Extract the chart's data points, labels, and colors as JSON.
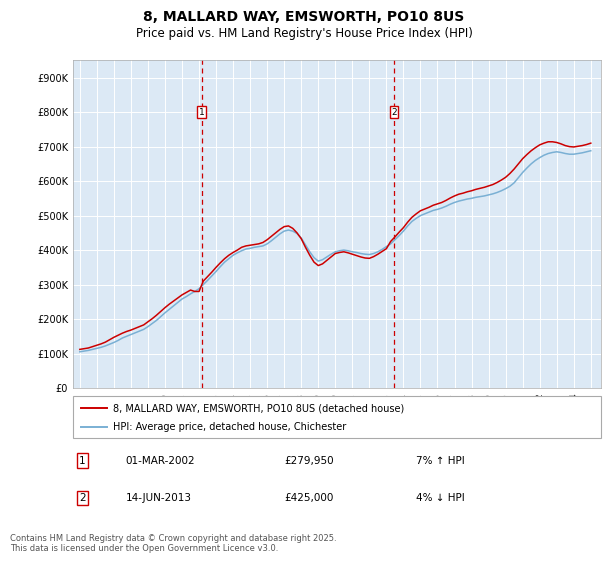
{
  "title": "8, MALLARD WAY, EMSWORTH, PO10 8US",
  "subtitle": "Price paid vs. HM Land Registry's House Price Index (HPI)",
  "title_fontsize": 10,
  "subtitle_fontsize": 8.5,
  "ylabel_labels": [
    "£0",
    "£100K",
    "£200K",
    "£300K",
    "£400K",
    "£500K",
    "£600K",
    "£700K",
    "£800K",
    "£900K"
  ],
  "ylim": [
    0,
    950000
  ],
  "yticks": [
    0,
    100000,
    200000,
    300000,
    400000,
    500000,
    600000,
    700000,
    800000,
    900000
  ],
  "xstart": 1994.6,
  "xend": 2025.6,
  "background_color": "#dce9f5",
  "plot_bg": "#dce9f5",
  "red_line_color": "#cc0000",
  "blue_line_color": "#7ab0d4",
  "dashed_line_color": "#cc0000",
  "sale1_x": 2002.16,
  "sale2_x": 2013.45,
  "sale1_price": 279950,
  "sale2_price": 425000,
  "legend1": "8, MALLARD WAY, EMSWORTH, PO10 8US (detached house)",
  "legend2": "HPI: Average price, detached house, Chichester",
  "annotation1_label": "1",
  "annotation2_label": "2",
  "annotation1_date": "01-MAR-2002",
  "annotation1_price": "£279,950",
  "annotation1_hpi": "7% ↑ HPI",
  "annotation2_date": "14-JUN-2013",
  "annotation2_price": "£425,000",
  "annotation2_hpi": "4% ↓ HPI",
  "footer": "Contains HM Land Registry data © Crown copyright and database right 2025.\nThis data is licensed under the Open Government Licence v3.0.",
  "hpi_years": [
    1995,
    1995.25,
    1995.5,
    1995.75,
    1996,
    1996.25,
    1996.5,
    1996.75,
    1997,
    1997.25,
    1997.5,
    1997.75,
    1998,
    1998.25,
    1998.5,
    1998.75,
    1999,
    1999.25,
    1999.5,
    1999.75,
    2000,
    2000.25,
    2000.5,
    2000.75,
    2001,
    2001.25,
    2001.5,
    2001.75,
    2002,
    2002.25,
    2002.5,
    2002.75,
    2003,
    2003.25,
    2003.5,
    2003.75,
    2004,
    2004.25,
    2004.5,
    2004.75,
    2005,
    2005.25,
    2005.5,
    2005.75,
    2006,
    2006.25,
    2006.5,
    2006.75,
    2007,
    2007.25,
    2007.5,
    2007.75,
    2008,
    2008.25,
    2008.5,
    2008.75,
    2009,
    2009.25,
    2009.5,
    2009.75,
    2010,
    2010.25,
    2010.5,
    2010.75,
    2011,
    2011.25,
    2011.5,
    2011.75,
    2012,
    2012.25,
    2012.5,
    2012.75,
    2013,
    2013.25,
    2013.5,
    2013.75,
    2014,
    2014.25,
    2014.5,
    2014.75,
    2015,
    2015.25,
    2015.5,
    2015.75,
    2016,
    2016.25,
    2016.5,
    2016.75,
    2017,
    2017.25,
    2017.5,
    2017.75,
    2018,
    2018.25,
    2018.5,
    2018.75,
    2019,
    2019.25,
    2019.5,
    2019.75,
    2020,
    2020.25,
    2020.5,
    2020.75,
    2021,
    2021.25,
    2021.5,
    2021.75,
    2022,
    2022.25,
    2022.5,
    2022.75,
    2023,
    2023.25,
    2023.5,
    2023.75,
    2024,
    2024.25,
    2024.5,
    2024.75,
    2025
  ],
  "hpi_values": [
    105000,
    107000,
    109000,
    112000,
    115000,
    118000,
    122000,
    127000,
    132000,
    138000,
    145000,
    150000,
    155000,
    160000,
    165000,
    170000,
    178000,
    187000,
    196000,
    207000,
    218000,
    228000,
    238000,
    248000,
    258000,
    265000,
    273000,
    280000,
    288000,
    300000,
    312000,
    325000,
    338000,
    352000,
    365000,
    375000,
    385000,
    392000,
    398000,
    403000,
    405000,
    408000,
    410000,
    412000,
    418000,
    427000,
    437000,
    447000,
    455000,
    458000,
    455000,
    448000,
    435000,
    415000,
    395000,
    378000,
    368000,
    372000,
    380000,
    388000,
    395000,
    398000,
    400000,
    398000,
    395000,
    393000,
    390000,
    388000,
    387000,
    390000,
    395000,
    402000,
    410000,
    418000,
    430000,
    442000,
    455000,
    470000,
    483000,
    492000,
    500000,
    505000,
    510000,
    515000,
    518000,
    522000,
    527000,
    533000,
    538000,
    542000,
    545000,
    548000,
    550000,
    553000,
    555000,
    557000,
    560000,
    563000,
    567000,
    572000,
    578000,
    585000,
    595000,
    610000,
    625000,
    638000,
    650000,
    660000,
    668000,
    675000,
    680000,
    683000,
    685000,
    683000,
    680000,
    678000,
    678000,
    680000,
    682000,
    685000,
    688000
  ],
  "price_years": [
    1995,
    1995.25,
    1995.5,
    1995.75,
    1996,
    1996.25,
    1996.5,
    1996.75,
    1997,
    1997.25,
    1997.5,
    1997.75,
    1998,
    1998.25,
    1998.5,
    1998.75,
    1999,
    1999.25,
    1999.5,
    1999.75,
    2000,
    2000.25,
    2000.5,
    2000.75,
    2001,
    2001.25,
    2001.5,
    2001.75,
    2002,
    2002.25,
    2002.5,
    2002.75,
    2003,
    2003.25,
    2003.5,
    2003.75,
    2004,
    2004.25,
    2004.5,
    2004.75,
    2005,
    2005.25,
    2005.5,
    2005.75,
    2006,
    2006.25,
    2006.5,
    2006.75,
    2007,
    2007.25,
    2007.5,
    2007.75,
    2008,
    2008.25,
    2008.5,
    2008.75,
    2009,
    2009.25,
    2009.5,
    2009.75,
    2010,
    2010.25,
    2010.5,
    2010.75,
    2011,
    2011.25,
    2011.5,
    2011.75,
    2012,
    2012.25,
    2012.5,
    2012.75,
    2013,
    2013.25,
    2013.5,
    2013.75,
    2014,
    2014.25,
    2014.5,
    2014.75,
    2015,
    2015.25,
    2015.5,
    2015.75,
    2016,
    2016.25,
    2016.5,
    2016.75,
    2017,
    2017.25,
    2017.5,
    2017.75,
    2018,
    2018.25,
    2018.5,
    2018.75,
    2019,
    2019.25,
    2019.5,
    2019.75,
    2020,
    2020.25,
    2020.5,
    2020.75,
    2021,
    2021.25,
    2021.5,
    2021.75,
    2022,
    2022.25,
    2022.5,
    2022.75,
    2023,
    2023.25,
    2023.5,
    2023.75,
    2024,
    2024.25,
    2024.5,
    2024.75,
    2025
  ],
  "price_values": [
    112000,
    114000,
    116000,
    120000,
    124000,
    128000,
    133000,
    140000,
    147000,
    153000,
    159000,
    164000,
    168000,
    173000,
    178000,
    183000,
    192000,
    201000,
    211000,
    222000,
    233000,
    243000,
    252000,
    261000,
    270000,
    277000,
    284000,
    279950,
    279950,
    310000,
    323000,
    336000,
    350000,
    363000,
    375000,
    385000,
    393000,
    400000,
    408000,
    412000,
    414000,
    416000,
    418000,
    422000,
    430000,
    440000,
    450000,
    460000,
    468000,
    470000,
    463000,
    450000,
    433000,
    408000,
    385000,
    365000,
    355000,
    360000,
    370000,
    380000,
    390000,
    393000,
    395000,
    392000,
    388000,
    384000,
    380000,
    377000,
    376000,
    381000,
    388000,
    396000,
    404000,
    425000,
    438000,
    452000,
    465000,
    481000,
    495000,
    505000,
    514000,
    519000,
    524000,
    530000,
    534000,
    538000,
    544000,
    551000,
    557000,
    562000,
    565000,
    569000,
    572000,
    576000,
    579000,
    582000,
    586000,
    590000,
    596000,
    603000,
    611000,
    622000,
    635000,
    650000,
    665000,
    677000,
    688000,
    697000,
    705000,
    710000,
    714000,
    714000,
    712000,
    708000,
    703000,
    700000,
    699000,
    701000,
    703000,
    706000,
    710000
  ]
}
